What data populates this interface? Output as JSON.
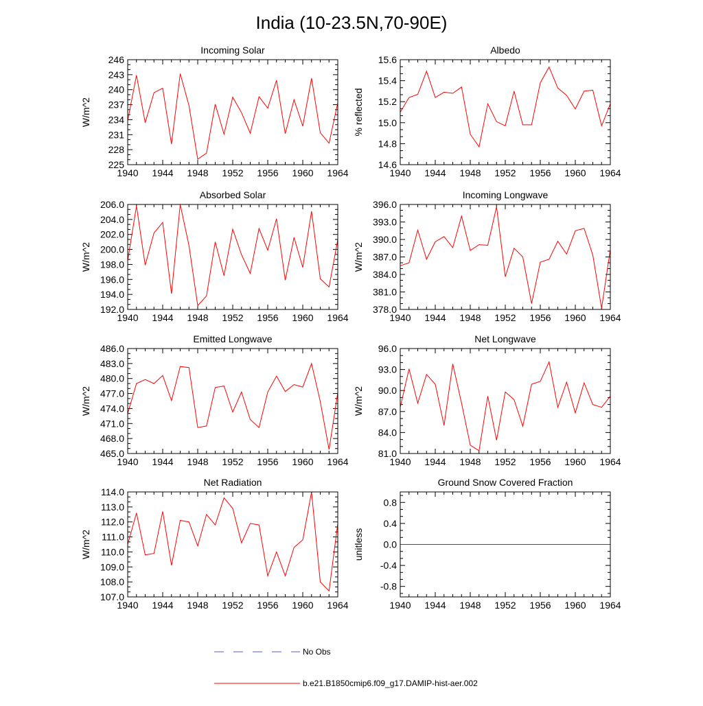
{
  "main_title": "India (10-23.5N,70-90E)",
  "x_ticks": [
    "1940",
    "1944",
    "1948",
    "1952",
    "1956",
    "1960",
    "1964"
  ],
  "x_ticks_values": [
    1940,
    1944,
    1948,
    1952,
    1956,
    1960,
    1964
  ],
  "legend": {
    "obs_label": "No Obs",
    "model_label": "b.e21.B1850cmip6.f09_g17.DAMIP-hist-aer.002",
    "obs_color": "#5a5ad6",
    "model_color": "#ff0000"
  },
  "chart_data": [
    {
      "type": "line",
      "title": "Incoming Solar",
      "ylabel": "W/m^2",
      "ylim": [
        225,
        246
      ],
      "yticks": [
        "225",
        "228",
        "231",
        "234",
        "237",
        "240",
        "243",
        "246"
      ],
      "xlim": [
        1940,
        1964
      ],
      "series": [
        {
          "name": "b.e21.B1850cmip6.f09_g17.DAMIP-hist-aer.002",
          "x": [
            1940,
            1941,
            1942,
            1943,
            1944,
            1945,
            1946,
            1947,
            1948,
            1949,
            1950,
            1951,
            1952,
            1953,
            1954,
            1955,
            1956,
            1957,
            1958,
            1959,
            1960,
            1961,
            1962,
            1963,
            1964
          ],
          "values": [
            233.8,
            242.9,
            233.4,
            239.4,
            240.3,
            229.1,
            243.2,
            236.8,
            226.1,
            227.3,
            237.1,
            231.1,
            238.5,
            235.4,
            231.3,
            238.6,
            236.3,
            241.9,
            231.2,
            238.0,
            232.7,
            242.3,
            231.4,
            229.3,
            237.4
          ]
        }
      ]
    },
    {
      "type": "line",
      "title": "Albedo",
      "ylabel": "% reflected",
      "ylim": [
        14.6,
        15.6
      ],
      "yticks": [
        "14.6",
        "14.8",
        "15.0",
        "15.2",
        "15.4",
        "15.6"
      ],
      "xlim": [
        1940,
        1964
      ],
      "series": [
        {
          "name": "b.e21.B1850cmip6.f09_g17.DAMIP-hist-aer.002",
          "x": [
            1940,
            1941,
            1942,
            1943,
            1944,
            1945,
            1946,
            1947,
            1948,
            1949,
            1950,
            1951,
            1952,
            1953,
            1954,
            1955,
            1956,
            1957,
            1958,
            1959,
            1960,
            1961,
            1962,
            1963,
            1964
          ],
          "values": [
            15.1,
            15.24,
            15.27,
            15.49,
            15.24,
            15.29,
            15.28,
            15.34,
            14.89,
            14.77,
            15.18,
            15.01,
            14.97,
            15.3,
            14.98,
            14.98,
            15.38,
            15.53,
            15.33,
            15.26,
            15.13,
            15.3,
            15.31,
            14.97,
            15.18
          ]
        }
      ]
    },
    {
      "type": "line",
      "title": "Absorbed Solar",
      "ylabel": "W/m^2",
      "ylim": [
        192.0,
        206.0
      ],
      "yticks": [
        "192.0",
        "194.0",
        "196.0",
        "198.0",
        "200.0",
        "202.0",
        "204.0",
        "206.0"
      ],
      "xlim": [
        1940,
        1964
      ],
      "series": [
        {
          "name": "b.e21.B1850cmip6.f09_g17.DAMIP-hist-aer.002",
          "x": [
            1940,
            1941,
            1942,
            1943,
            1944,
            1945,
            1946,
            1947,
            1948,
            1949,
            1950,
            1951,
            1952,
            1953,
            1954,
            1955,
            1956,
            1957,
            1958,
            1959,
            1960,
            1961,
            1962,
            1963,
            1964
          ],
          "values": [
            198.5,
            205.8,
            197.9,
            202.2,
            203.6,
            194.1,
            206.0,
            200.5,
            192.5,
            193.8,
            201.0,
            196.5,
            202.7,
            199.3,
            196.8,
            202.8,
            199.9,
            204.1,
            195.9,
            201.6,
            197.6,
            205.1,
            196.1,
            195.0,
            201.3
          ]
        }
      ]
    },
    {
      "type": "line",
      "title": "Incoming Longwave",
      "ylabel": "W/m^2",
      "ylim": [
        378.0,
        396.0
      ],
      "yticks": [
        "378.0",
        "381.0",
        "384.0",
        "387.0",
        "390.0",
        "393.0",
        "396.0"
      ],
      "xlim": [
        1940,
        1964
      ],
      "series": [
        {
          "name": "b.e21.B1850cmip6.f09_g17.DAMIP-hist-aer.002",
          "x": [
            1940,
            1941,
            1942,
            1943,
            1944,
            1945,
            1946,
            1947,
            1948,
            1949,
            1950,
            1951,
            1952,
            1953,
            1954,
            1955,
            1956,
            1957,
            1958,
            1959,
            1960,
            1961,
            1962,
            1963,
            1964
          ],
          "values": [
            385.5,
            386.0,
            391.6,
            386.6,
            389.6,
            390.5,
            388.6,
            394.0,
            388.1,
            389.1,
            389.0,
            395.6,
            383.6,
            388.5,
            387.0,
            379.0,
            386.1,
            386.6,
            389.7,
            387.5,
            391.5,
            391.9,
            387.3,
            378.2,
            388.3
          ]
        }
      ]
    },
    {
      "type": "line",
      "title": "Emitted Longwave",
      "ylabel": "W/m^2",
      "ylim": [
        465.0,
        486.0
      ],
      "yticks": [
        "465.0",
        "468.0",
        "471.0",
        "474.0",
        "477.0",
        "480.0",
        "483.0",
        "486.0"
      ],
      "xlim": [
        1940,
        1964
      ],
      "series": [
        {
          "name": "b.e21.B1850cmip6.f09_g17.DAMIP-hist-aer.002",
          "x": [
            1940,
            1941,
            1942,
            1943,
            1944,
            1945,
            1946,
            1947,
            1948,
            1949,
            1950,
            1951,
            1952,
            1953,
            1954,
            1955,
            1956,
            1957,
            1958,
            1959,
            1960,
            1961,
            1962,
            1963,
            1964
          ],
          "values": [
            473.0,
            479.0,
            479.8,
            479.0,
            480.6,
            475.6,
            482.4,
            482.2,
            470.2,
            470.5,
            478.2,
            478.5,
            473.3,
            477.3,
            471.8,
            470.2,
            477.3,
            480.5,
            477.4,
            478.8,
            478.3,
            483.0,
            475.4,
            465.8,
            477.2
          ]
        }
      ]
    },
    {
      "type": "line",
      "title": "Net Longwave",
      "ylabel": "W/m^2",
      "ylim": [
        81.0,
        96.0
      ],
      "yticks": [
        "81.0",
        "84.0",
        "87.0",
        "90.0",
        "93.0",
        "96.0"
      ],
      "xlim": [
        1940,
        1964
      ],
      "series": [
        {
          "name": "b.e21.B1850cmip6.f09_g17.DAMIP-hist-aer.002",
          "x": [
            1940,
            1941,
            1942,
            1943,
            1944,
            1945,
            1946,
            1947,
            1948,
            1949,
            1950,
            1951,
            1952,
            1953,
            1954,
            1955,
            1956,
            1957,
            1958,
            1959,
            1960,
            1961,
            1962,
            1963,
            1964
          ],
          "values": [
            87.6,
            93.1,
            88.2,
            92.3,
            90.9,
            85.0,
            93.8,
            88.2,
            82.2,
            81.4,
            89.2,
            82.9,
            89.8,
            88.7,
            84.9,
            90.9,
            91.3,
            94.1,
            87.6,
            91.2,
            86.8,
            91.1,
            88.0,
            87.6,
            89.2
          ]
        }
      ]
    },
    {
      "type": "line",
      "title": "Net Radiation",
      "ylabel": "W/m^2",
      "ylim": [
        107.0,
        114.0
      ],
      "yticks": [
        "107.0",
        "108.0",
        "109.0",
        "110.0",
        "111.0",
        "112.0",
        "113.0",
        "114.0"
      ],
      "xlim": [
        1940,
        1964
      ],
      "series": [
        {
          "name": "b.e21.B1850cmip6.f09_g17.DAMIP-hist-aer.002",
          "x": [
            1940,
            1941,
            1942,
            1943,
            1944,
            1945,
            1946,
            1947,
            1948,
            1949,
            1950,
            1951,
            1952,
            1953,
            1954,
            1955,
            1956,
            1957,
            1958,
            1959,
            1960,
            1961,
            1962,
            1963,
            1964
          ],
          "values": [
            110.5,
            112.6,
            109.8,
            109.9,
            112.7,
            109.1,
            112.1,
            112.0,
            110.4,
            112.5,
            111.8,
            113.6,
            112.9,
            110.6,
            111.9,
            111.8,
            108.4,
            110.0,
            108.4,
            110.3,
            110.8,
            114.0,
            108.0,
            107.4,
            111.9
          ]
        }
      ]
    },
    {
      "type": "line",
      "title": "Ground Snow Covered Fraction",
      "ylabel": "unitless",
      "ylim": [
        -1.0,
        1.0
      ],
      "yticks": [
        "-0.8",
        "-0.4",
        "0.0",
        "0.4",
        "0.8"
      ],
      "yticks_values": [
        -0.8,
        -0.4,
        0.0,
        0.4,
        0.8
      ],
      "xlim": [
        1940,
        1964
      ],
      "series": [
        {
          "name": "b.e21.B1850cmip6.f09_g17.DAMIP-hist-aer.002",
          "x": [
            1940,
            1941,
            1942,
            1943,
            1944,
            1945,
            1946,
            1947,
            1948,
            1949,
            1950,
            1951,
            1952,
            1953,
            1954,
            1955,
            1956,
            1957,
            1958,
            1959,
            1960,
            1961,
            1962,
            1963,
            1964
          ],
          "values": [
            0,
            0,
            0,
            0,
            0,
            0,
            0,
            0,
            0,
            0,
            0,
            0,
            0,
            0,
            0,
            0,
            0,
            0,
            0,
            0,
            0,
            0,
            0,
            0,
            0
          ]
        }
      ]
    }
  ]
}
